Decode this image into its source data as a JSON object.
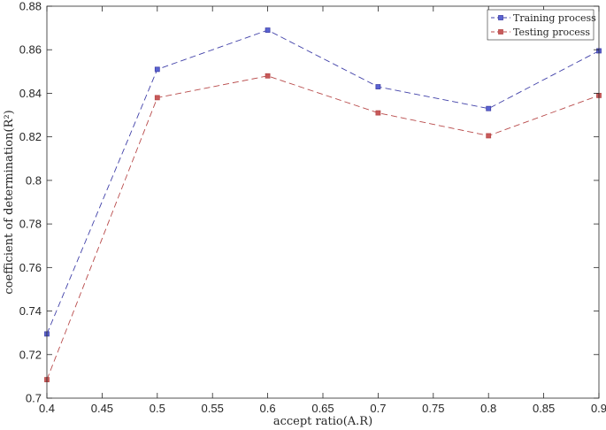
{
  "chart_data": {
    "type": "line",
    "title": "",
    "xlabel": "accept ratio(A.R)",
    "ylabel": "coefficient of determination(R²)",
    "xlim": [
      0.4,
      0.9
    ],
    "ylim": [
      0.7,
      0.88
    ],
    "xticks": [
      "0.4",
      "0.45",
      "0.5",
      "0.55",
      "0.6",
      "0.65",
      "0.7",
      "0.75",
      "0.8",
      "0.85",
      "0.9"
    ],
    "yticks": [
      "0.7",
      "0.72",
      "0.74",
      "0.76",
      "0.78",
      "0.8",
      "0.82",
      "0.84",
      "0.86",
      "0.88"
    ],
    "grid": false,
    "legend_position": "top-right",
    "x": [
      0.4,
      0.5,
      0.6,
      0.7,
      0.8,
      0.9
    ],
    "series": [
      {
        "name": "Training process",
        "color": "#4040a8",
        "marker": "#5a64d2",
        "values": [
          0.7295,
          0.851,
          0.869,
          0.843,
          0.833,
          0.8595
        ]
      },
      {
        "name": "Testing process",
        "color": "#b84a4a",
        "marker": "#c85a5a",
        "values": [
          0.7085,
          0.838,
          0.848,
          0.831,
          0.8205,
          0.839
        ]
      }
    ]
  }
}
